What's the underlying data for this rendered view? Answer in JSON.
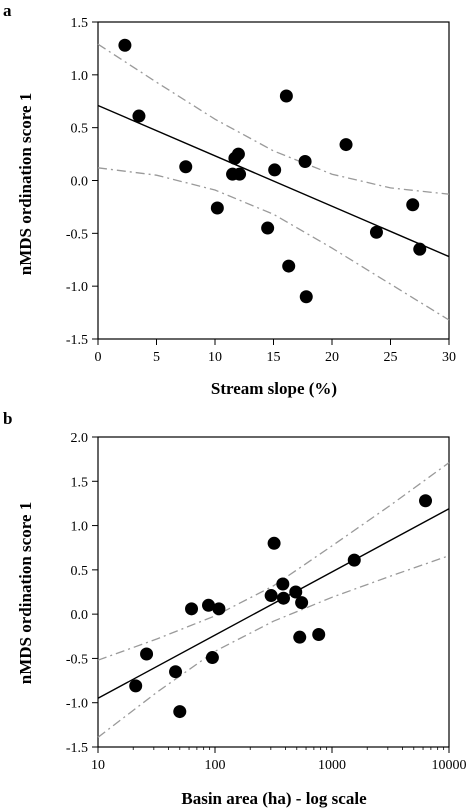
{
  "chart_data": [
    {
      "panel": "a",
      "type": "scatter",
      "xlabel": "Stream slope (%)",
      "ylabel": "nMDS ordination score 1",
      "xlim": [
        0,
        30
      ],
      "ylim": [
        -1.5,
        1.5
      ],
      "xscale": "linear",
      "x_ticks": [
        0,
        5,
        10,
        15,
        20,
        25,
        30
      ],
      "x_tick_labels": [
        "0",
        "5",
        "10",
        "15",
        "20",
        "25",
        "30"
      ],
      "y_ticks": [
        -1.5,
        -1.0,
        -0.5,
        0.0,
        0.5,
        1.0,
        1.5
      ],
      "y_tick_labels": [
        "-1.5",
        "-1.0",
        "-0.5",
        "0.0",
        "0.5",
        "1.0",
        "1.5"
      ],
      "grid": false,
      "points": [
        {
          "x": 2.3,
          "y": 1.28
        },
        {
          "x": 3.5,
          "y": 0.61
        },
        {
          "x": 7.5,
          "y": 0.13
        },
        {
          "x": 10.2,
          "y": -0.26
        },
        {
          "x": 11.5,
          "y": 0.06
        },
        {
          "x": 11.7,
          "y": 0.21
        },
        {
          "x": 12.0,
          "y": 0.25
        },
        {
          "x": 12.1,
          "y": 0.06
        },
        {
          "x": 14.5,
          "y": -0.45
        },
        {
          "x": 15.1,
          "y": 0.1
        },
        {
          "x": 16.1,
          "y": 0.8
        },
        {
          "x": 16.3,
          "y": -0.81
        },
        {
          "x": 17.7,
          "y": 0.18
        },
        {
          "x": 17.8,
          "y": -1.1
        },
        {
          "x": 21.2,
          "y": 0.34
        },
        {
          "x": 23.8,
          "y": -0.49
        },
        {
          "x": 26.9,
          "y": -0.23
        },
        {
          "x": 27.5,
          "y": -0.65
        }
      ],
      "regression": {
        "x": [
          0,
          30
        ],
        "y": [
          0.71,
          -0.72
        ]
      },
      "ci_upper": [
        {
          "x": 0,
          "y": 1.29
        },
        {
          "x": 5,
          "y": 0.93
        },
        {
          "x": 10,
          "y": 0.58
        },
        {
          "x": 15,
          "y": 0.28
        },
        {
          "x": 20,
          "y": 0.06
        },
        {
          "x": 25,
          "y": -0.07
        },
        {
          "x": 30,
          "y": -0.13
        }
      ],
      "ci_lower": [
        {
          "x": 0,
          "y": 0.12
        },
        {
          "x": 5,
          "y": 0.05
        },
        {
          "x": 10,
          "y": -0.09
        },
        {
          "x": 15,
          "y": -0.32
        },
        {
          "x": 20,
          "y": -0.64
        },
        {
          "x": 25,
          "y": -0.98
        },
        {
          "x": 30,
          "y": -1.32
        }
      ]
    },
    {
      "panel": "b",
      "type": "scatter",
      "xlabel": "Basin area (ha) - log scale",
      "ylabel": "nMDS ordination score 1",
      "xlim": [
        10,
        10000
      ],
      "ylim": [
        -1.5,
        2.0
      ],
      "xscale": "log",
      "x_ticks": [
        10,
        100,
        1000,
        10000
      ],
      "x_tick_labels": [
        "10",
        "100",
        "1000",
        "10000"
      ],
      "y_ticks": [
        -1.5,
        -1.0,
        -0.5,
        0.0,
        0.5,
        1.0,
        1.5,
        2.0
      ],
      "y_tick_labels": [
        "-1.5",
        "-1.0",
        "-0.5",
        "0.0",
        "0.5",
        "1.0",
        "1.5",
        "2.0"
      ],
      "grid": false,
      "points": [
        {
          "x": 21,
          "y": -0.81
        },
        {
          "x": 26,
          "y": -0.45
        },
        {
          "x": 46,
          "y": -0.65
        },
        {
          "x": 50,
          "y": -1.1
        },
        {
          "x": 63,
          "y": 0.06
        },
        {
          "x": 88,
          "y": 0.1
        },
        {
          "x": 95,
          "y": -0.49
        },
        {
          "x": 108,
          "y": 0.06
        },
        {
          "x": 302,
          "y": 0.21
        },
        {
          "x": 320,
          "y": 0.8
        },
        {
          "x": 380,
          "y": 0.34
        },
        {
          "x": 385,
          "y": 0.18
        },
        {
          "x": 490,
          "y": 0.25
        },
        {
          "x": 530,
          "y": -0.26
        },
        {
          "x": 550,
          "y": 0.13
        },
        {
          "x": 770,
          "y": -0.23
        },
        {
          "x": 1550,
          "y": 0.61
        },
        {
          "x": 6300,
          "y": 1.28
        }
      ],
      "regression": {
        "x": [
          10,
          10000
        ],
        "y": [
          -0.95,
          1.19
        ]
      },
      "ci_upper": [
        {
          "x": 10,
          "y": -0.52
        },
        {
          "x": 32,
          "y": -0.28
        },
        {
          "x": 100,
          "y": -0.02
        },
        {
          "x": 316,
          "y": 0.32
        },
        {
          "x": 1000,
          "y": 0.77
        },
        {
          "x": 3162,
          "y": 1.23
        },
        {
          "x": 10000,
          "y": 1.71
        }
      ],
      "ci_lower": [
        {
          "x": 10,
          "y": -1.39
        },
        {
          "x": 32,
          "y": -0.88
        },
        {
          "x": 100,
          "y": -0.42
        },
        {
          "x": 316,
          "y": -0.08
        },
        {
          "x": 1000,
          "y": 0.19
        },
        {
          "x": 3162,
          "y": 0.43
        },
        {
          "x": 10000,
          "y": 0.66
        }
      ]
    }
  ],
  "colors": {
    "points": "#000000",
    "regression": "#000000",
    "ci": "#9a9a9a",
    "axes": "#000000"
  }
}
